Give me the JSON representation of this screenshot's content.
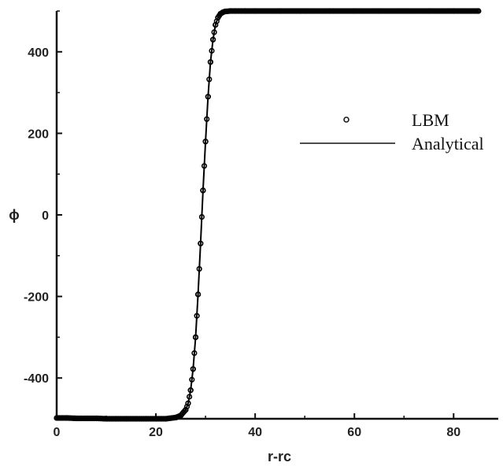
{
  "chart_data": {
    "type": "line",
    "xlabel": "r-rc",
    "ylabel": "ϕ",
    "xlim": [
      0,
      89
    ],
    "ylim": [
      -500,
      500
    ],
    "x_ticks": [
      0,
      20,
      40,
      60,
      80
    ],
    "y_ticks": [
      -400,
      -200,
      0,
      200,
      400
    ],
    "x_tick_labels": [
      "0",
      "20",
      "40",
      "60",
      "80"
    ],
    "y_tick_labels": [
      "-400",
      "-200",
      "0",
      "200",
      "400"
    ],
    "grid": false,
    "legend_position": "right",
    "series": [
      {
        "name": "LBM",
        "style": "markers",
        "marker": "open-circle",
        "color": "#000000",
        "x": [
          0,
          2,
          4,
          6,
          8,
          10,
          12,
          14,
          16,
          18,
          20,
          22,
          24,
          25,
          26,
          26.5,
          27,
          27.5,
          28,
          28.5,
          29,
          29.5,
          30,
          30.5,
          31,
          31.5,
          32,
          32.5,
          33,
          33.5,
          34,
          35,
          36,
          38,
          40,
          45,
          50,
          55,
          60,
          65,
          70,
          75,
          80,
          85
        ],
        "y": [
          -498,
          -498,
          -499,
          -499,
          -499,
          -500,
          -500,
          -500,
          -500,
          -500,
          -500,
          -500,
          -497,
          -492,
          -478,
          -462,
          -430,
          -378,
          -300,
          -195,
          -70,
          60,
          180,
          290,
          375,
          430,
          466,
          484,
          493,
          497,
          499,
          500,
          500,
          500,
          500,
          500,
          500,
          500,
          500,
          500,
          500,
          500,
          500,
          500
        ]
      },
      {
        "name": "Analytical",
        "style": "line",
        "color": "#000000",
        "x": [
          0,
          5,
          10,
          15,
          20,
          23,
          24,
          25,
          26,
          26.5,
          27,
          27.5,
          28,
          28.5,
          29,
          29.5,
          30,
          30.5,
          31,
          31.5,
          32,
          32.5,
          33,
          34,
          35,
          37,
          40,
          50,
          60,
          70,
          80,
          85
        ],
        "y": [
          -498,
          -499,
          -500,
          -500,
          -500,
          -500,
          -497,
          -492,
          -478,
          -462,
          -430,
          -378,
          -300,
          -195,
          -70,
          60,
          180,
          290,
          375,
          430,
          466,
          484,
          493,
          498,
          500,
          500,
          500,
          500,
          500,
          500,
          500,
          500
        ]
      }
    ]
  }
}
